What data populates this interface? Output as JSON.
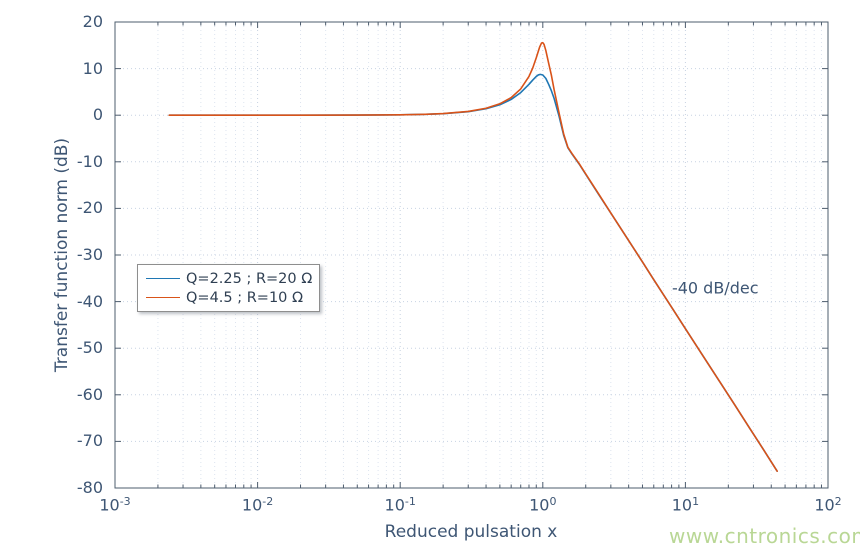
{
  "figure": {
    "background": "#ffffff",
    "text_color": "#3e5674",
    "axis_color": "#4e5d6e",
    "major_grid_color": "#c7d2e2",
    "minor_grid_color": "#dde4ef"
  },
  "chart_data": {
    "type": "line",
    "title": "",
    "xlabel": "Reduced pulsation x",
    "ylabel": "Transfer function norm (dB)",
    "x_scale": "log",
    "xlim": [
      0.001,
      100
    ],
    "ylim": [
      -80,
      20
    ],
    "x_tick_exponents": [
      -3,
      -2,
      -1,
      0,
      1,
      2
    ],
    "y_ticks": [
      20,
      10,
      0,
      -10,
      -20,
      -30,
      -40,
      -50,
      -60,
      -70,
      -80
    ],
    "grid": true,
    "legend_position": "left-middle",
    "annotation": {
      "text": "-40 dB/dec",
      "x": 8.05,
      "y": -37
    },
    "series": [
      {
        "name": "Q=2.25 ; R=20 Ω",
        "color": "#1f77b4",
        "points": [
          [
            0.0024,
            0
          ],
          [
            0.004,
            0
          ],
          [
            0.01,
            0.01
          ],
          [
            0.02,
            0.01
          ],
          [
            0.05,
            0.02
          ],
          [
            0.1,
            0.08
          ],
          [
            0.15,
            0.18
          ],
          [
            0.2,
            0.33
          ],
          [
            0.3,
            0.76
          ],
          [
            0.4,
            1.38
          ],
          [
            0.5,
            2.24
          ],
          [
            0.6,
            3.38
          ],
          [
            0.7,
            4.85
          ],
          [
            0.8,
            6.63
          ],
          [
            0.85,
            7.54
          ],
          [
            0.9,
            8.32
          ],
          [
            0.93,
            8.64
          ],
          [
            0.96,
            8.76
          ],
          [
            1.0,
            8.63
          ],
          [
            1.05,
            7.9
          ],
          [
            1.1,
            6.6
          ],
          [
            1.15,
            5.2
          ],
          [
            1.2,
            3.6
          ],
          [
            1.3,
            -0.2
          ],
          [
            1.4,
            -4.3
          ],
          [
            1.5,
            -7.0
          ],
          [
            1.6,
            -8.3
          ],
          [
            1.8,
            -10.5
          ],
          [
            2,
            -12.7
          ],
          [
            2.5,
            -17.3
          ],
          [
            3,
            -21.0
          ],
          [
            4,
            -26.9
          ],
          [
            5,
            -31.5
          ],
          [
            6,
            -35.3
          ],
          [
            8,
            -41.2
          ],
          [
            10,
            -45.8
          ],
          [
            13,
            -51.2
          ],
          [
            17,
            -56.7
          ],
          [
            22,
            -62.0
          ],
          [
            28,
            -67.0
          ],
          [
            35,
            -71.6
          ],
          [
            44,
            -76.4
          ]
        ]
      },
      {
        "name": "Q=4.5 ; R=10 Ω",
        "color": "#d95319",
        "points": [
          [
            0.0024,
            0
          ],
          [
            0.004,
            0
          ],
          [
            0.01,
            0.01
          ],
          [
            0.02,
            0.01
          ],
          [
            0.05,
            0.02
          ],
          [
            0.1,
            0.09
          ],
          [
            0.15,
            0.2
          ],
          [
            0.2,
            0.35
          ],
          [
            0.3,
            0.81
          ],
          [
            0.4,
            1.49
          ],
          [
            0.5,
            2.45
          ],
          [
            0.6,
            3.77
          ],
          [
            0.7,
            5.63
          ],
          [
            0.8,
            8.32
          ],
          [
            0.85,
            10.13
          ],
          [
            0.9,
            12.32
          ],
          [
            0.95,
            14.61
          ],
          [
            0.98,
            15.5
          ],
          [
            1.0,
            15.56
          ],
          [
            1.02,
            15.2
          ],
          [
            1.05,
            13.9
          ],
          [
            1.1,
            11.1
          ],
          [
            1.15,
            8.5
          ],
          [
            1.2,
            5.5
          ],
          [
            1.3,
            0.5
          ],
          [
            1.4,
            -4.0
          ],
          [
            1.5,
            -6.9
          ],
          [
            1.6,
            -8.2
          ],
          [
            1.8,
            -10.4
          ],
          [
            2,
            -12.6
          ],
          [
            2.5,
            -17.2
          ],
          [
            3,
            -21.0
          ],
          [
            4,
            -26.9
          ],
          [
            5,
            -31.5
          ],
          [
            6,
            -35.3
          ],
          [
            8,
            -41.2
          ],
          [
            10,
            -45.8
          ],
          [
            13,
            -51.2
          ],
          [
            17,
            -56.7
          ],
          [
            22,
            -62.0
          ],
          [
            28,
            -67.0
          ],
          [
            35,
            -71.6
          ],
          [
            44,
            -76.4
          ]
        ]
      }
    ]
  },
  "legend": {
    "items": [
      {
        "label": "Q=2.25 ; R=20 Ω",
        "color": "#1f77b4"
      },
      {
        "label": "Q=4.5 ; R=10 Ω",
        "color": "#d95319"
      }
    ]
  },
  "annotation": {
    "text": "-40 dB/dec"
  },
  "watermark": {
    "text": "www.cntronics.com",
    "color": "#b9d795"
  }
}
